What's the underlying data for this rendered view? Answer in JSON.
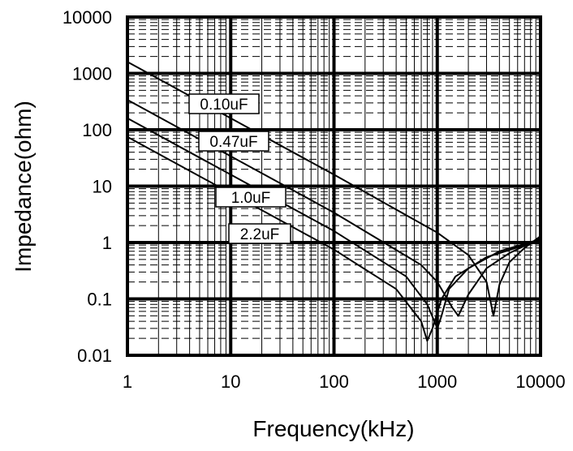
{
  "chart_data": {
    "type": "line",
    "title": "",
    "xlabel": "Frequency(kHz)",
    "ylabel": "Impedance(ohm)",
    "x_scale": "log",
    "y_scale": "log",
    "xlim": [
      1,
      10000
    ],
    "ylim": [
      0.01,
      10000
    ],
    "x_ticks": [
      "1",
      "10",
      "100",
      "1000",
      "10000"
    ],
    "y_ticks": [
      "0.01",
      "0.1",
      "1",
      "10",
      "100",
      "1000",
      "10000"
    ],
    "grid": true,
    "series": [
      {
        "name": "0.10uF",
        "x": [
          1,
          10,
          100,
          1000,
          2000,
          3000,
          3500,
          4000,
          5000,
          7000,
          10000
        ],
        "y": [
          1600,
          160,
          16,
          1.5,
          0.6,
          0.2,
          0.05,
          0.18,
          0.45,
          0.8,
          1.3
        ]
      },
      {
        "name": "0.47uF",
        "x": [
          1,
          10,
          100,
          700,
          1000,
          1400,
          1600,
          2000,
          3000,
          5000,
          10000
        ],
        "y": [
          340,
          34,
          3.4,
          0.4,
          0.2,
          0.07,
          0.05,
          0.12,
          0.35,
          0.65,
          1.2
        ]
      },
      {
        "name": "1.0uF",
        "x": [
          1,
          10,
          100,
          500,
          800,
          1000,
          1100,
          1300,
          2000,
          4000,
          10000
        ],
        "y": [
          160,
          16,
          1.6,
          0.25,
          0.08,
          0.03,
          0.05,
          0.15,
          0.35,
          0.7,
          1.15
        ]
      },
      {
        "name": "2.2uF",
        "x": [
          1,
          10,
          100,
          400,
          700,
          800,
          900,
          1100,
          1500,
          3000,
          10000
        ],
        "y": [
          75,
          7.5,
          0.75,
          0.15,
          0.04,
          0.018,
          0.03,
          0.1,
          0.25,
          0.55,
          1.1
        ]
      }
    ]
  }
}
